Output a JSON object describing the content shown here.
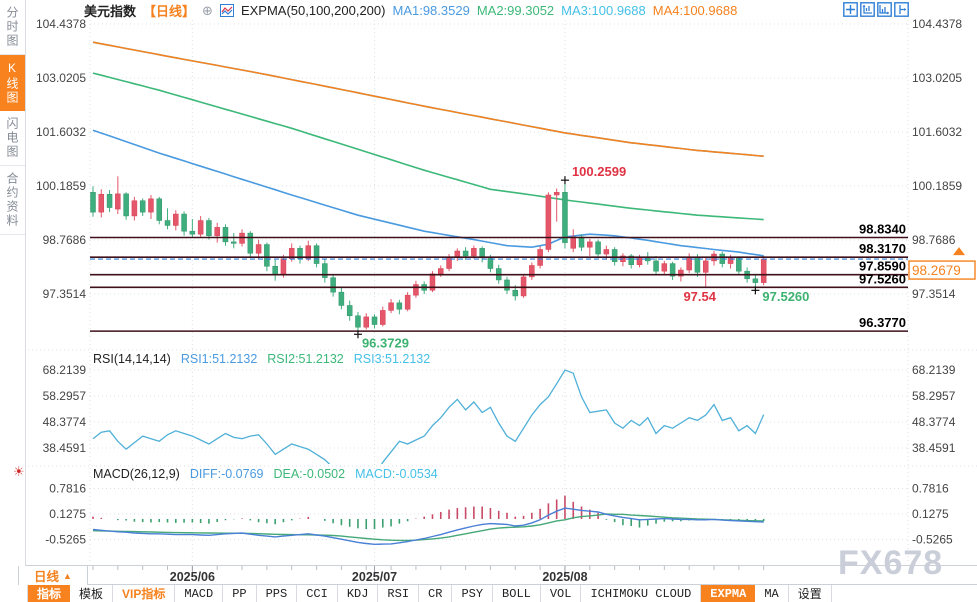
{
  "colors": {
    "up": "#e45669",
    "up_stroke": "#d64254",
    "down": "#3fae7e",
    "down_stroke": "#339468",
    "level_line": "#3f1019",
    "level_label": "#000000",
    "dashed_line": "#2f7fd6",
    "axis_text": "#444444",
    "grid": "#dcdfe5",
    "ma1": "#4a9ae0",
    "ma2": "#3cb878",
    "ma3": "#45c0e8",
    "ma4": "#f5821f",
    "rsi_line": "#4fb0d8",
    "macd_diff": "#4a7fd6",
    "macd_dea": "#45a878",
    "hist_up": "#c84a66",
    "hist_down": "#3aa070",
    "marker_red": "#e03344",
    "marker_green": "#3cb371",
    "accent_orange": "#f5821f",
    "icon_blue": "#2f7fd6"
  },
  "icons": {
    "circle_plus": "⊕",
    "sun": "☀",
    "triangle_up": "▲"
  },
  "sidebar": {
    "items": [
      {
        "label": "分时图",
        "active": false
      },
      {
        "label": "K线图",
        "active": true
      },
      {
        "label": "闪电图",
        "active": false
      },
      {
        "label": "合约资料",
        "active": false
      }
    ]
  },
  "header": {
    "symbol": "美元指数",
    "period_tag": "【日线】",
    "indicator_title": "EXPMA(50,100,200,200)",
    "ma_values": [
      {
        "label": "MA1:98.3529"
      },
      {
        "label": "MA2:99.3052"
      },
      {
        "label": "MA3:100.9688"
      },
      {
        "label": "MA4:100.9688"
      }
    ]
  },
  "rsi_header": {
    "title": "RSI(14,14,14)",
    "values": [
      {
        "label": "RSI1:51.2132"
      },
      {
        "label": "RSI2:51.2132"
      },
      {
        "label": "RSI3:51.2132"
      }
    ]
  },
  "macd_header": {
    "title": "MACD(26,12,9)",
    "values": [
      {
        "label": "DIFF:-0.0769"
      },
      {
        "label": "DEA:-0.0502"
      },
      {
        "label": "MACD:-0.0534"
      }
    ]
  },
  "xaxis": {
    "period_label": "日线"
  },
  "watermark": "FX678",
  "toolbar": {
    "tabs": [
      {
        "label": "指标",
        "active": true,
        "cn": true
      },
      {
        "label": "模板",
        "active": false,
        "cn": true
      },
      {
        "label": "VIP指标",
        "active": false,
        "cn": true,
        "vip": true
      },
      {
        "label": "MACD",
        "active": false
      },
      {
        "label": "PP",
        "active": false
      },
      {
        "label": "PPS",
        "active": false
      },
      {
        "label": "CCI",
        "active": false
      },
      {
        "label": "KDJ",
        "active": false
      },
      {
        "label": "RSI",
        "active": false
      },
      {
        "label": "CR",
        "active": false
      },
      {
        "label": "PSY",
        "active": false
      },
      {
        "label": "BOLL",
        "active": false
      },
      {
        "label": "VOL",
        "active": false
      },
      {
        "label": "ICHIMOKU CLOUD",
        "active": false
      },
      {
        "label": "EXPMA",
        "active": true
      },
      {
        "label": "MA",
        "active": false
      },
      {
        "label": "设置",
        "active": false,
        "cn": true
      }
    ]
  },
  "chart_data": {
    "type": "candlestick",
    "symbol": "美元指数",
    "period": "日线",
    "main": {
      "y_ticks": [
        {
          "v": 104.4378,
          "label": "104.4378"
        },
        {
          "v": 103.0205,
          "label": "103.0205"
        },
        {
          "v": 101.6032,
          "label": "101.6032"
        },
        {
          "v": 100.1859,
          "label": "100.1859"
        },
        {
          "v": 98.7686,
          "label": "98.7686"
        },
        {
          "v": 97.3514,
          "label": "97.3514"
        }
      ],
      "levels": [
        {
          "price": 98.834,
          "label": "98.8340"
        },
        {
          "price": 98.317,
          "label": "98.3170"
        },
        {
          "price": 97.859,
          "label": "97.8590"
        },
        {
          "price": 97.526,
          "label": "97.5260"
        },
        {
          "price": 96.377,
          "label": "96.3770"
        }
      ],
      "current_price": 98.2679,
      "price_box_label": "98.2679",
      "candles": [
        [
          100.02,
          100.18,
          99.38,
          99.5
        ],
        [
          99.5,
          100.1,
          99.36,
          99.97
        ],
        [
          99.97,
          100.08,
          99.5,
          99.62
        ],
        [
          99.58,
          100.44,
          99.45,
          99.98
        ],
        [
          99.98,
          100.02,
          99.3,
          99.4
        ],
        [
          99.4,
          99.9,
          99.28,
          99.8
        ],
        [
          99.8,
          99.86,
          99.4,
          99.5
        ],
        [
          99.5,
          99.95,
          99.32,
          99.85
        ],
        [
          99.85,
          99.9,
          99.18,
          99.28
        ],
        [
          99.28,
          99.6,
          99.05,
          99.15
        ],
        [
          99.15,
          99.55,
          99.02,
          99.45
        ],
        [
          99.45,
          99.52,
          98.88,
          99.0
        ],
        [
          99.0,
          99.32,
          98.82,
          98.92
        ],
        [
          98.92,
          99.4,
          98.85,
          99.28
        ],
        [
          99.28,
          99.35,
          98.78,
          98.88
        ],
        [
          98.88,
          99.22,
          98.7,
          99.1
        ],
        [
          99.1,
          99.18,
          98.62,
          98.72
        ],
        [
          98.72,
          98.95,
          98.55,
          98.68
        ],
        [
          98.68,
          99.05,
          98.6,
          98.95
        ],
        [
          98.95,
          99.0,
          98.3,
          98.42
        ],
        [
          98.42,
          98.78,
          98.28,
          98.65
        ],
        [
          98.65,
          98.7,
          97.95,
          98.08
        ],
        [
          98.08,
          98.25,
          97.7,
          97.85
        ],
        [
          97.85,
          98.38,
          97.78,
          98.28
        ],
        [
          98.28,
          98.68,
          98.2,
          98.55
        ],
        [
          98.55,
          98.62,
          98.15,
          98.28
        ],
        [
          98.28,
          98.75,
          98.22,
          98.62
        ],
        [
          98.62,
          98.68,
          98.05,
          98.15
        ],
        [
          98.15,
          98.28,
          97.65,
          97.78
        ],
        [
          97.78,
          97.85,
          97.28,
          97.4
        ],
        [
          97.4,
          97.55,
          96.95,
          97.05
        ],
        [
          97.05,
          97.18,
          96.65,
          96.78
        ],
        [
          96.78,
          96.88,
          96.3729,
          96.48
        ],
        [
          96.48,
          96.85,
          96.42,
          96.75
        ],
        [
          96.75,
          96.82,
          96.45,
          96.55
        ],
        [
          96.55,
          97.02,
          96.5,
          96.92
        ],
        [
          96.92,
          97.22,
          96.85,
          97.12
        ],
        [
          97.12,
          97.2,
          96.82,
          96.95
        ],
        [
          96.95,
          97.4,
          96.9,
          97.32
        ],
        [
          97.32,
          97.7,
          97.25,
          97.6
        ],
        [
          97.6,
          97.68,
          97.35,
          97.45
        ],
        [
          97.45,
          97.95,
          97.4,
          97.88
        ],
        [
          97.88,
          98.1,
          97.8,
          98.02
        ],
        [
          98.02,
          98.4,
          97.95,
          98.32
        ],
        [
          98.32,
          98.55,
          98.22,
          98.48
        ],
        [
          98.48,
          98.58,
          98.25,
          98.35
        ],
        [
          98.35,
          98.62,
          98.28,
          98.55
        ],
        [
          98.55,
          98.6,
          98.18,
          98.3
        ],
        [
          98.3,
          98.38,
          97.92,
          98.02
        ],
        [
          98.02,
          98.12,
          97.62,
          97.72
        ],
        [
          97.72,
          97.8,
          97.35,
          97.45
        ],
        [
          97.45,
          97.58,
          97.18,
          97.3
        ],
        [
          97.3,
          97.88,
          97.25,
          97.8
        ],
        [
          97.8,
          98.18,
          97.72,
          98.1
        ],
        [
          98.1,
          98.6,
          98.02,
          98.52
        ],
        [
          98.52,
          100.02,
          98.45,
          99.95
        ],
        [
          99.95,
          100.12,
          99.25,
          100.02
        ],
        [
          100.02,
          100.2599,
          98.55,
          98.7
        ],
        [
          98.55,
          99.05,
          98.45,
          98.85
        ],
        [
          98.85,
          98.92,
          98.48,
          98.58
        ],
        [
          98.58,
          98.8,
          98.35,
          98.72
        ],
        [
          98.72,
          98.78,
          98.3,
          98.4
        ],
        [
          98.4,
          98.62,
          98.25,
          98.52
        ],
        [
          98.52,
          98.58,
          98.1,
          98.2
        ],
        [
          98.2,
          98.42,
          98.08,
          98.35
        ],
        [
          98.35,
          98.4,
          98.02,
          98.12
        ],
        [
          98.12,
          98.38,
          98.05,
          98.3
        ],
        [
          98.3,
          98.45,
          98.12,
          98.22
        ],
        [
          98.22,
          98.35,
          97.85,
          97.95
        ],
        [
          97.95,
          98.22,
          97.85,
          98.15
        ],
        [
          98.15,
          98.2,
          97.72,
          97.82
        ],
        [
          97.82,
          98.05,
          97.68,
          97.98
        ],
        [
          97.98,
          98.42,
          97.9,
          98.32
        ],
        [
          98.32,
          98.4,
          97.8,
          97.92
        ],
        [
          97.92,
          98.3,
          97.54,
          98.22
        ],
        [
          98.22,
          98.48,
          98.1,
          98.4
        ],
        [
          98.4,
          98.46,
          98.05,
          98.15
        ],
        [
          98.15,
          98.38,
          98.02,
          98.3
        ],
        [
          98.3,
          98.34,
          97.85,
          97.95
        ],
        [
          97.95,
          98.05,
          97.65,
          97.75
        ],
        [
          97.75,
          97.88,
          97.526,
          97.65
        ],
        [
          97.65,
          98.35,
          97.58,
          98.2679
        ]
      ],
      "expma": {
        "ma3_points": [
          [
            0,
            103.96
          ],
          [
            10,
            103.55
          ],
          [
            20,
            103.15
          ],
          [
            30,
            102.72
          ],
          [
            40,
            102.28
          ],
          [
            48,
            101.95
          ],
          [
            57,
            101.58
          ],
          [
            65,
            101.32
          ],
          [
            73,
            101.12
          ],
          [
            81,
            100.9688
          ]
        ],
        "ma4_points": [
          [
            0,
            103.96
          ],
          [
            10,
            103.55
          ],
          [
            20,
            103.15
          ],
          [
            30,
            102.72
          ],
          [
            40,
            102.28
          ],
          [
            48,
            101.95
          ],
          [
            57,
            101.58
          ],
          [
            65,
            101.32
          ],
          [
            73,
            101.12
          ],
          [
            81,
            100.9688
          ]
        ],
        "ma2_points": [
          [
            0,
            103.15
          ],
          [
            8,
            102.7
          ],
          [
            16,
            102.2
          ],
          [
            24,
            101.7
          ],
          [
            32,
            101.15
          ],
          [
            40,
            100.6
          ],
          [
            48,
            100.1
          ],
          [
            53,
            99.95
          ],
          [
            57,
            99.82
          ],
          [
            65,
            99.6
          ],
          [
            73,
            99.42
          ],
          [
            81,
            99.3052
          ]
        ],
        "ma1_points": [
          [
            0,
            101.65
          ],
          [
            8,
            101.05
          ],
          [
            16,
            100.5
          ],
          [
            24,
            99.95
          ],
          [
            32,
            99.42
          ],
          [
            40,
            99.0
          ],
          [
            46,
            98.78
          ],
          [
            50,
            98.62
          ],
          [
            53,
            98.58
          ],
          [
            55,
            98.66
          ],
          [
            57,
            98.85
          ],
          [
            60,
            98.92
          ],
          [
            63,
            98.88
          ],
          [
            67,
            98.76
          ],
          [
            71,
            98.62
          ],
          [
            75,
            98.52
          ],
          [
            78,
            98.45
          ],
          [
            81,
            98.3529
          ]
        ]
      },
      "markers": {
        "high": {
          "index": 57,
          "price": 100.2599,
          "label": "100.2599"
        },
        "low": {
          "index": 32,
          "price": 96.3729,
          "label": "96.3729"
        },
        "swing_low_red": {
          "index": 74,
          "price": 97.54,
          "label": "97.54"
        },
        "swing_low_green": {
          "index": 80,
          "price": 97.526,
          "label": "97.5260"
        }
      }
    },
    "rsi": {
      "y_ticks": [
        {
          "v": 68.2139,
          "label": "68.2139"
        },
        {
          "v": 58.2957,
          "label": "58.2957"
        },
        {
          "v": 48.3774,
          "label": "48.3774"
        },
        {
          "v": 38.4591,
          "label": "38.4591"
        }
      ],
      "values": [
        42,
        44.5,
        45,
        41,
        38,
        40.5,
        43,
        42,
        41,
        43.5,
        45,
        44,
        43,
        41.5,
        40,
        42,
        44,
        42.5,
        42,
        43,
        43.5,
        40,
        36,
        38,
        40,
        39,
        38,
        36,
        34,
        31,
        29,
        27,
        26,
        30,
        28,
        33,
        37,
        41,
        40,
        41.5,
        43,
        47,
        50,
        54,
        57,
        53,
        56,
        52,
        54,
        48,
        43,
        41,
        46,
        51,
        55,
        58,
        63,
        68.2,
        67,
        58,
        52,
        52.5,
        53,
        48,
        46,
        49,
        47,
        50,
        44,
        47,
        46,
        48,
        50,
        49,
        51,
        55,
        49,
        50,
        45,
        47,
        44,
        51.21
      ]
    },
    "macd": {
      "y_ticks": [
        {
          "v": 0.7816,
          "label": "0.7816"
        },
        {
          "v": 0.1275,
          "label": "0.1275"
        },
        {
          "v": -0.5265,
          "label": "-0.5265"
        }
      ],
      "diff": [
        -0.27,
        -0.29,
        -0.31,
        -0.33,
        -0.34,
        -0.36,
        -0.37,
        -0.38,
        -0.38,
        -0.39,
        -0.4,
        -0.4,
        -0.4,
        -0.41,
        -0.42,
        -0.4,
        -0.38,
        -0.37,
        -0.36,
        -0.39,
        -0.42,
        -0.44,
        -0.46,
        -0.44,
        -0.42,
        -0.4,
        -0.38,
        -0.41,
        -0.44,
        -0.48,
        -0.52,
        -0.56,
        -0.6,
        -0.63,
        -0.65,
        -0.645,
        -0.64,
        -0.61,
        -0.58,
        -0.54,
        -0.5,
        -0.45,
        -0.4,
        -0.34,
        -0.28,
        -0.23,
        -0.18,
        -0.14,
        -0.12,
        -0.13,
        -0.14,
        -0.18,
        -0.16,
        -0.1,
        -0.02,
        0.1,
        0.2,
        0.28,
        0.25,
        0.22,
        0.2,
        0.18,
        0.12,
        0.08,
        0.04,
        0.01,
        -0.02,
        -0.01,
        0.0,
        0.01,
        0.0,
        -0.01,
        -0.01,
        -0.02,
        -0.02,
        -0.01,
        -0.03,
        -0.04,
        -0.05,
        -0.06,
        -0.07,
        -0.0769
      ],
      "dea": [
        -0.3,
        -0.305,
        -0.31,
        -0.315,
        -0.32,
        -0.325,
        -0.33,
        -0.335,
        -0.34,
        -0.345,
        -0.35,
        -0.352,
        -0.355,
        -0.358,
        -0.36,
        -0.362,
        -0.364,
        -0.366,
        -0.368,
        -0.372,
        -0.378,
        -0.385,
        -0.392,
        -0.398,
        -0.402,
        -0.405,
        -0.406,
        -0.41,
        -0.416,
        -0.425,
        -0.44,
        -0.46,
        -0.48,
        -0.5,
        -0.52,
        -0.535,
        -0.545,
        -0.55,
        -0.55,
        -0.545,
        -0.53,
        -0.51,
        -0.49,
        -0.46,
        -0.42,
        -0.38,
        -0.34,
        -0.3,
        -0.26,
        -0.235,
        -0.22,
        -0.21,
        -0.2,
        -0.18,
        -0.15,
        -0.1,
        -0.05,
        -0.02,
        0.03,
        0.06,
        0.08,
        0.1,
        0.13,
        0.12,
        0.12,
        0.1,
        0.09,
        0.075,
        0.06,
        0.045,
        0.03,
        0.02,
        0.01,
        0.0,
        -0.005,
        -0.01,
        -0.02,
        -0.03,
        -0.035,
        -0.042,
        -0.048,
        -0.0502
      ]
    },
    "x_ticks": [
      {
        "index": 12,
        "label": "2025/06"
      },
      {
        "index": 34,
        "label": "2025/07"
      },
      {
        "index": 57,
        "label": "2025/08"
      }
    ]
  }
}
